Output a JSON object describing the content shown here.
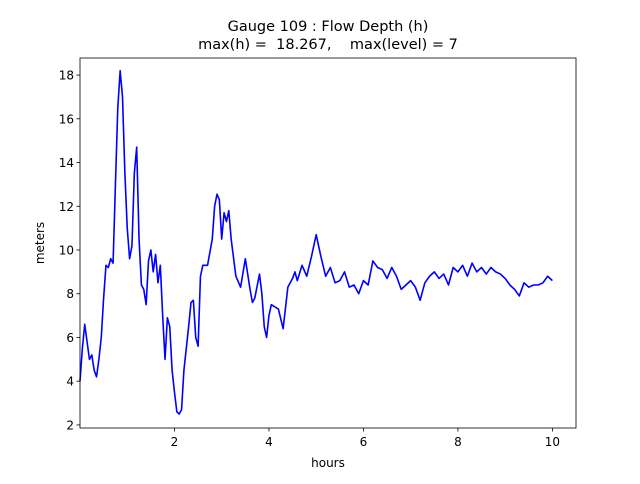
{
  "chart_data": {
    "type": "line",
    "title": "Gauge 109 : Flow Depth (h)",
    "subtitle": "max(h) =  18.267,    max(level) = 7",
    "x_label": "hours",
    "y_label": "meters",
    "xlim": [
      0,
      10.5
    ],
    "ylim": [
      1.86,
      18.78
    ],
    "xticks": [
      2,
      4,
      6,
      8,
      10
    ],
    "yticks": [
      2,
      4,
      6,
      8,
      10,
      12,
      14,
      16,
      18
    ],
    "grid": false,
    "x": [
      0.0,
      0.05,
      0.1,
      0.15,
      0.2,
      0.25,
      0.3,
      0.35,
      0.4,
      0.45,
      0.5,
      0.55,
      0.6,
      0.65,
      0.7,
      0.75,
      0.8,
      0.85,
      0.9,
      0.95,
      1.0,
      1.05,
      1.1,
      1.15,
      1.2,
      1.25,
      1.3,
      1.35,
      1.4,
      1.45,
      1.5,
      1.55,
      1.6,
      1.65,
      1.7,
      1.75,
      1.8,
      1.85,
      1.9,
      1.95,
      2.0,
      2.05,
      2.1,
      2.15,
      2.2,
      2.3,
      2.35,
      2.4,
      2.45,
      2.5,
      2.55,
      2.6,
      2.7,
      2.8,
      2.85,
      2.9,
      2.95,
      3.0,
      3.05,
      3.1,
      3.15,
      3.2,
      3.3,
      3.4,
      3.5,
      3.6,
      3.65,
      3.7,
      3.8,
      3.85,
      3.9,
      3.95,
      4.0,
      4.05,
      4.2,
      4.3,
      4.4,
      4.5,
      4.55,
      4.6,
      4.7,
      4.8,
      4.9,
      5.0,
      5.1,
      5.2,
      5.3,
      5.4,
      5.5,
      5.6,
      5.7,
      5.8,
      5.9,
      6.0,
      6.1,
      6.2,
      6.3,
      6.4,
      6.5,
      6.6,
      6.7,
      6.8,
      6.9,
      7.0,
      7.1,
      7.2,
      7.3,
      7.4,
      7.5,
      7.6,
      7.7,
      7.8,
      7.9,
      8.0,
      8.1,
      8.2,
      8.3,
      8.4,
      8.5,
      8.6,
      8.7,
      8.8,
      8.9,
      9.0,
      9.1,
      9.2,
      9.3,
      9.4,
      9.5,
      9.6,
      9.7,
      9.8,
      9.9,
      10.0
    ],
    "series": [
      {
        "name": "h",
        "color": "#0000ff",
        "values": [
          4.0,
          5.5,
          6.6,
          5.8,
          5.0,
          5.2,
          4.5,
          4.2,
          5.0,
          6.0,
          7.8,
          9.3,
          9.2,
          9.6,
          9.4,
          13.0,
          16.5,
          18.2,
          17.0,
          13.5,
          11.0,
          9.6,
          10.2,
          13.5,
          14.7,
          10.5,
          8.4,
          8.2,
          7.5,
          9.5,
          10.0,
          9.0,
          9.8,
          8.5,
          9.3,
          7.0,
          5.0,
          6.9,
          6.5,
          4.5,
          3.5,
          2.6,
          2.5,
          2.7,
          4.5,
          6.5,
          7.6,
          7.7,
          6.0,
          5.6,
          8.8,
          9.3,
          9.3,
          10.5,
          12.0,
          12.55,
          12.3,
          10.5,
          11.7,
          11.3,
          11.8,
          10.5,
          8.8,
          8.3,
          9.6,
          8.2,
          7.6,
          7.8,
          8.9,
          8.0,
          6.5,
          6.0,
          7.0,
          7.5,
          7.3,
          6.4,
          8.3,
          8.7,
          9.0,
          8.6,
          9.3,
          8.8,
          9.7,
          10.7,
          9.7,
          8.8,
          9.2,
          8.5,
          8.6,
          9.0,
          8.3,
          8.4,
          8.0,
          8.6,
          8.4,
          9.5,
          9.2,
          9.1,
          8.7,
          9.2,
          8.8,
          8.2,
          8.4,
          8.6,
          8.3,
          7.7,
          8.5,
          8.8,
          9.0,
          8.7,
          8.9,
          8.4,
          9.2,
          9.0,
          9.3,
          8.8,
          9.4,
          9.0,
          9.2,
          8.9,
          9.2,
          9.0,
          8.9,
          8.7,
          8.4,
          8.2,
          7.9,
          8.5,
          8.3,
          8.4,
          8.4,
          8.5,
          8.8,
          8.6
        ]
      }
    ]
  }
}
